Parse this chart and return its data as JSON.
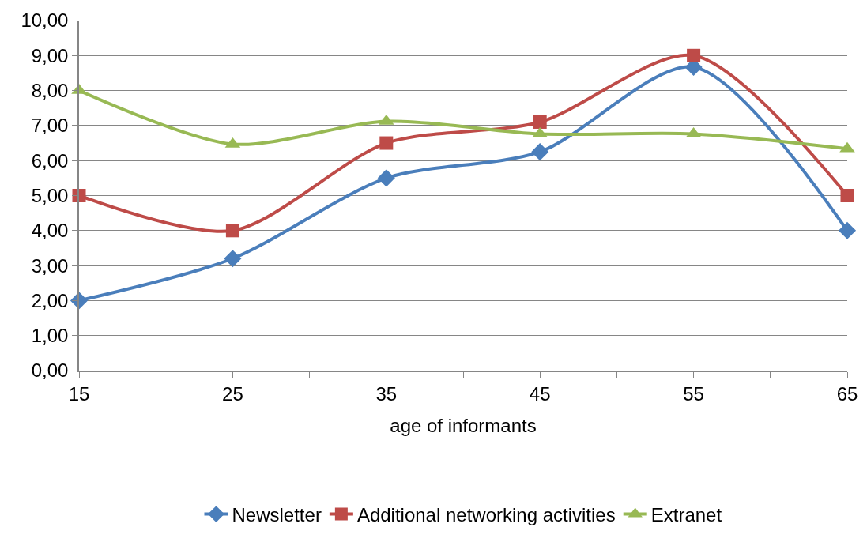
{
  "chart_data": {
    "type": "line",
    "xlabel": "age of informants",
    "x": [
      15,
      25,
      35,
      45,
      55,
      65
    ],
    "series": [
      {
        "name": "Newsletter",
        "color": "#4a7ebb",
        "marker": "diamond",
        "values": [
          2.0,
          3.2,
          5.5,
          6.25,
          8.67,
          4.0
        ]
      },
      {
        "name": "Additional networking activities",
        "color": "#be4b48",
        "marker": "square",
        "values": [
          5.0,
          4.0,
          6.5,
          7.1,
          9.0,
          5.0
        ]
      },
      {
        "name": "Extranet",
        "color": "#98b954",
        "marker": "triangle",
        "values": [
          8.0,
          6.47,
          7.12,
          6.76,
          6.76,
          6.34
        ]
      }
    ],
    "xlim": [
      15,
      65
    ],
    "xticks": [
      15,
      {
        "value": 20,
        "label": null
      },
      25,
      {
        "value": 30,
        "label": null
      },
      35,
      {
        "value": 40,
        "label": null
      },
      45,
      {
        "value": 50,
        "label": null
      },
      55,
      {
        "value": 60,
        "label": null
      },
      65
    ],
    "ylim": [
      0,
      10
    ],
    "yticks": [
      {
        "value": 0,
        "label": "0,00"
      },
      {
        "value": 1,
        "label": "1,00"
      },
      {
        "value": 2,
        "label": "2,00"
      },
      {
        "value": 3,
        "label": "3,00"
      },
      {
        "value": 4,
        "label": "4,00"
      },
      {
        "value": 5,
        "label": "5,00"
      },
      {
        "value": 6,
        "label": "6,00"
      },
      {
        "value": 7,
        "label": "7,00"
      },
      {
        "value": 8,
        "label": "8,00"
      },
      {
        "value": 9,
        "label": "9,00"
      },
      {
        "value": 10,
        "label": "10,00"
      }
    ],
    "grid": "y",
    "legend": "bottom",
    "line_style": "solid"
  }
}
